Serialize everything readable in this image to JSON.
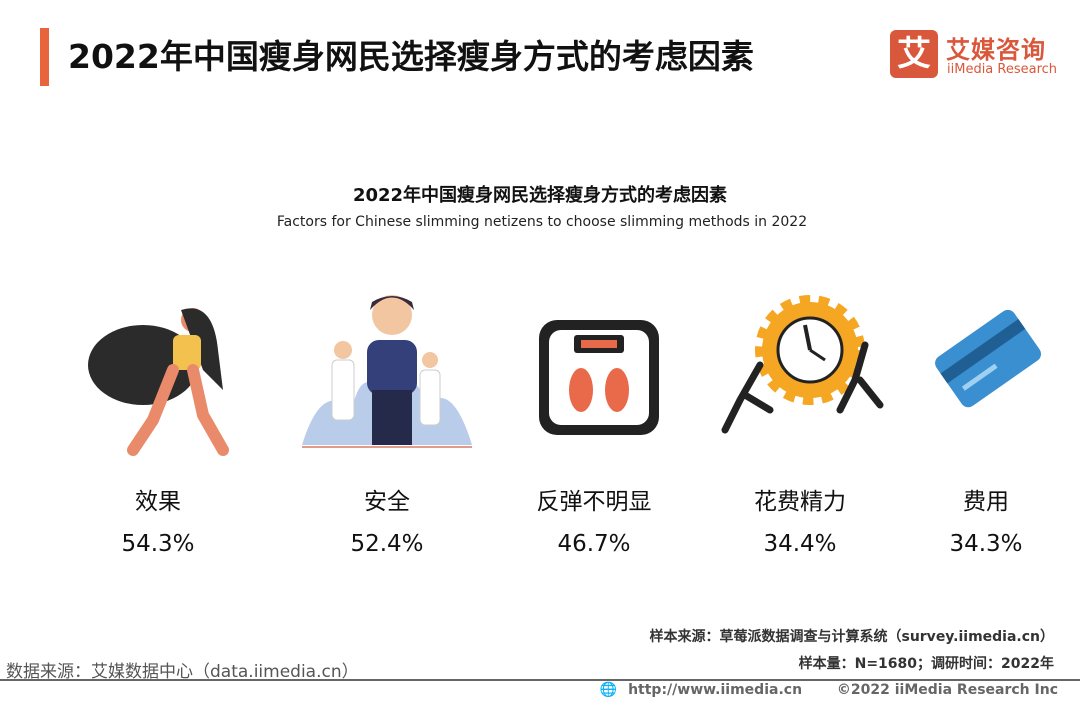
{
  "header": {
    "title": "2022年中国瘦身网民选择瘦身方式的考虑因素",
    "accent_color": "#e8643c"
  },
  "logo": {
    "mark": "艾",
    "name_cn": "艾媒咨询",
    "name_en": "iiMedia Research",
    "color": "#d9573a"
  },
  "chart_data": {
    "type": "table",
    "title": "2022年中国瘦身网民选择瘦身方式的考虑因素",
    "subtitle": "Factors for Chinese slimming netizens to choose slimming methods in 2022",
    "categories": [
      "效果",
      "安全",
      "反弹不明显",
      "花费精力",
      "费用"
    ],
    "values": [
      "54.3%",
      "52.4%",
      "46.7%",
      "34.4%",
      "34.3%"
    ],
    "icons": [
      "woman-dancing-icon",
      "doctors-icon",
      "bathroom-scale-icon",
      "gear-pushing-icon",
      "credit-card-icon"
    ]
  },
  "footer": {
    "sample_source": "样本来源：草莓派数据调查与计算系统（survey.iimedia.cn）",
    "sample_size": "样本量：N=1680；调研时间：2022年",
    "data_source": "数据来源：艾媒数据中心（data.iimedia.cn）",
    "url": "http://www.iimedia.cn",
    "copyright": "©2022  iiMedia Research  Inc"
  }
}
